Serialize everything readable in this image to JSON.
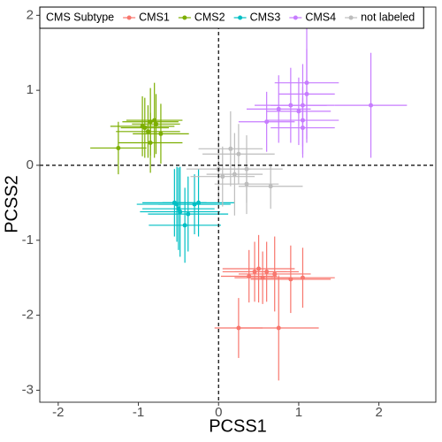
{
  "chart_data": {
    "type": "scatter",
    "xlabel": "PCSS1",
    "ylabel": "PCSS2",
    "legend_title": "CMS Subtype",
    "legend": "top",
    "xlim": [
      -2.23,
      2.71
    ],
    "ylim": [
      -3.16,
      2.11
    ],
    "xticks": [
      -2,
      -1,
      0,
      1,
      2
    ],
    "yticks": [
      -3,
      -2,
      -1,
      0,
      1,
      2
    ],
    "reference_lines": {
      "x": 0,
      "y": 0
    },
    "series": [
      {
        "name": "CMS1",
        "color": "#F8766D",
        "x": [
          0.45,
          0.5,
          0.38,
          0.6,
          0.7,
          0.9,
          1.05,
          0.55,
          0.25,
          0.75
        ],
        "values": [
          -1.42,
          -1.38,
          -1.48,
          -1.42,
          -1.45,
          -1.52,
          -1.5,
          -1.5,
          -2.17,
          -2.17
        ],
        "x_error": [
          0.4,
          0.45,
          0.35,
          0.4,
          0.45,
          0.5,
          0.4,
          0.35,
          0.3,
          0.5
        ],
        "y_error": [
          0.4,
          0.45,
          0.35,
          0.4,
          0.5,
          0.45,
          0.4,
          0.35,
          0.4,
          0.7
        ]
      },
      {
        "name": "CMS2",
        "color": "#7CAE00",
        "x": [
          -0.95,
          -0.85,
          -0.78,
          -0.88,
          -0.72,
          -0.85,
          -1.25,
          -0.92,
          -0.8
        ],
        "values": [
          0.52,
          0.58,
          0.55,
          0.45,
          0.42,
          0.3,
          0.23,
          0.5,
          0.6
        ],
        "x_error": [
          0.4,
          0.35,
          0.3,
          0.4,
          0.35,
          0.4,
          0.35,
          0.3,
          0.35
        ],
        "y_error": [
          0.4,
          0.45,
          0.4,
          0.35,
          0.4,
          0.4,
          0.35,
          0.4,
          0.5
        ]
      },
      {
        "name": "CMS3",
        "color": "#00BFC4",
        "x": [
          -0.52,
          -0.5,
          -0.38,
          -0.25,
          -0.48,
          -0.3,
          -0.55,
          -0.42
        ],
        "values": [
          -0.52,
          -0.58,
          -0.65,
          -0.5,
          -0.62,
          -0.52,
          -0.5,
          -0.8
        ],
        "x_error": [
          0.5,
          0.45,
          0.5,
          0.45,
          0.5,
          0.45,
          0.4,
          0.45
        ],
        "y_error": [
          0.5,
          0.55,
          0.5,
          0.45,
          0.6,
          0.4,
          0.45,
          0.5
        ]
      },
      {
        "name": "CMS4",
        "color": "#C77CFF",
        "x": [
          0.6,
          0.75,
          0.9,
          1.05,
          1.1,
          1.1,
          1.05,
          1.05,
          1.9,
          1.0
        ],
        "values": [
          0.58,
          0.75,
          0.8,
          0.8,
          1.1,
          0.95,
          0.6,
          0.5,
          0.8,
          0.72
        ],
        "x_error": [
          0.35,
          0.4,
          0.45,
          0.4,
          0.4,
          0.35,
          0.45,
          0.4,
          0.45,
          0.4
        ],
        "y_error": [
          0.4,
          0.45,
          0.5,
          0.55,
          0.8,
          0.6,
          0.45,
          0.4,
          0.7,
          0.45
        ]
      },
      {
        "name": "not labeled",
        "color": "#BDBDBD",
        "x": [
          0.15,
          0.25,
          0.0,
          0.05,
          0.35,
          0.65,
          0.35,
          0.2
        ],
        "values": [
          0.22,
          0.15,
          -0.05,
          -0.15,
          -0.25,
          -0.28,
          -0.05,
          -0.12
        ],
        "x_error": [
          0.4,
          0.45,
          0.4,
          0.4,
          0.4,
          0.4,
          0.45,
          0.35
        ],
        "y_error": [
          0.5,
          0.4,
          0.45,
          0.4,
          0.4,
          0.3,
          0.45,
          0.55
        ]
      }
    ]
  }
}
